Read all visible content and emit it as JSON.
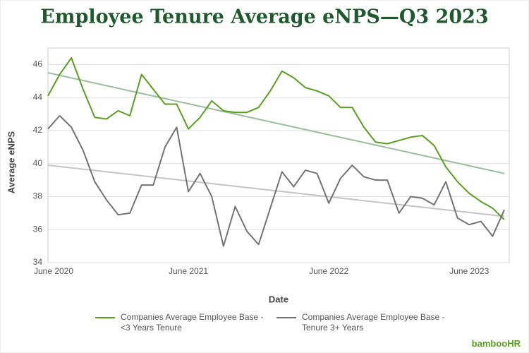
{
  "chart_data": {
    "type": "line",
    "title": "Employee Tenure Average eNPS—Q3 2023",
    "x_label": "Date",
    "y_label": "Average eNPS",
    "categories": [
      "June 2020",
      null,
      null,
      null,
      null,
      null,
      null,
      null,
      null,
      null,
      null,
      null,
      "June 2021",
      null,
      null,
      null,
      null,
      null,
      null,
      null,
      null,
      null,
      null,
      null,
      "June 2022",
      null,
      null,
      null,
      null,
      null,
      null,
      null,
      null,
      null,
      null,
      null,
      "June 2023",
      null,
      null,
      null
    ],
    "series": [
      {
        "name": "Companies Average Employee Base - <3 Years Tenure",
        "color": "#5a9e1f",
        "values": [
          44.1,
          45.4,
          46.4,
          44.5,
          42.8,
          42.7,
          43.2,
          42.9,
          45.4,
          44.5,
          43.6,
          43.6,
          42.1,
          42.8,
          43.8,
          43.2,
          43.1,
          43.1,
          43.4,
          44.4,
          45.6,
          45.2,
          44.6,
          44.4,
          44.1,
          43.4,
          43.4,
          42.2,
          41.3,
          41.2,
          41.4,
          41.6,
          41.7,
          41.1,
          39.8,
          38.9,
          38.2,
          37.7,
          37.3,
          36.6
        ]
      },
      {
        "name": "Companies Average Employee Base - Tenure 3+ Years",
        "color": "#737373",
        "values": [
          42.1,
          42.9,
          42.2,
          40.8,
          38.9,
          37.8,
          36.9,
          37.0,
          38.7,
          38.7,
          41.0,
          42.2,
          38.3,
          39.4,
          38.0,
          35.0,
          37.4,
          35.9,
          35.1,
          37.3,
          39.5,
          38.6,
          39.6,
          39.4,
          37.6,
          39.1,
          39.9,
          39.2,
          39.0,
          39.0,
          37.0,
          38.0,
          37.9,
          37.5,
          38.9,
          36.7,
          36.3,
          36.5,
          35.6,
          37.2
        ]
      }
    ],
    "trendlines": [
      {
        "color": "#9dbf9f",
        "values": [
          45.5,
          39.4
        ]
      },
      {
        "color": "#c4c4c4",
        "values": [
          39.9,
          36.8
        ]
      }
    ],
    "ylim": [
      34,
      47
    ],
    "yticks": [
      34,
      36,
      38,
      40,
      42,
      44,
      46
    ],
    "grid": true,
    "logo": "bambooHR"
  }
}
